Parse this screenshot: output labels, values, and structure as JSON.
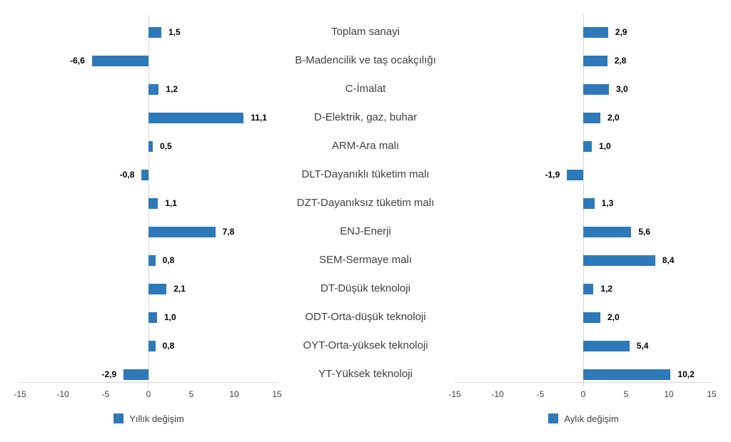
{
  "colors": {
    "bar": "#2E79B9",
    "axis_line": "#D9D9D9",
    "tick_text": "#404040",
    "category_text": "#404040",
    "value_text": "#000000"
  },
  "chart_data": [
    {
      "type": "bar",
      "orientation": "horizontal",
      "legend": "Yıllık değişim",
      "legend_position": "bottom",
      "grid": false,
      "xlim": [
        -15,
        15
      ],
      "xticks": [
        -15,
        -10,
        -5,
        0,
        5,
        10,
        15
      ],
      "bar_color": "#2E79B9",
      "categories": [
        "Toplam sanayi",
        "B-Madencilik ve taş ocakçılığı",
        "C-İmalat",
        "D-Elektrik, gaz, buhar",
        "ARM-Ara malı",
        "DLT-Dayanıklı tüketim malı",
        "DZT-Dayanıksız tüketim malı",
        "ENJ-Enerji",
        "SEM-Sermaye malı",
        "DT-Düşük teknoloji",
        "ODT-Orta-düşük teknoloji",
        "OYT-Orta-yüksek teknoloji",
        "YT-Yüksek teknoloji"
      ],
      "values": [
        1.5,
        -6.6,
        1.2,
        11.1,
        0.5,
        -0.8,
        1.1,
        7.8,
        0.8,
        2.1,
        1.0,
        0.8,
        -2.9
      ],
      "value_labels": [
        "1,5",
        "-6,6",
        "1,2",
        "11,1",
        "0,5",
        "-0,8",
        "1,1",
        "7,8",
        "0,8",
        "2,1",
        "1,0",
        "0,8",
        "-2,9"
      ]
    },
    {
      "type": "bar",
      "orientation": "horizontal",
      "legend": "Aylık değişim",
      "legend_position": "bottom",
      "grid": false,
      "xlim": [
        -15,
        15
      ],
      "xticks": [
        -15,
        -10,
        -5,
        0,
        5,
        10,
        15
      ],
      "bar_color": "#2E79B9",
      "categories": [
        "Toplam sanayi",
        "B-Madencilik ve taş ocakçılığı",
        "C-İmalat",
        "D-Elektrik, gaz, buhar",
        "ARM-Ara malı",
        "DLT-Dayanıklı tüketim malı",
        "DZT-Dayanıksız tüketim malı",
        "ENJ-Enerji",
        "SEM-Sermaye malı",
        "DT-Düşük teknoloji",
        "ODT-Orta-düşük teknoloji",
        "OYT-Orta-yüksek teknoloji",
        "YT-Yüksek teknoloji"
      ],
      "values": [
        2.9,
        2.8,
        3.0,
        2.0,
        1.0,
        -1.9,
        1.3,
        5.6,
        8.4,
        1.2,
        2.0,
        5.4,
        10.2
      ],
      "value_labels": [
        "2,9",
        "2,8",
        "3,0",
        "2,0",
        "1,0",
        "-1,9",
        "1,3",
        "5,6",
        "8,4",
        "1,2",
        "2,0",
        "5,4",
        "10,2"
      ]
    }
  ]
}
